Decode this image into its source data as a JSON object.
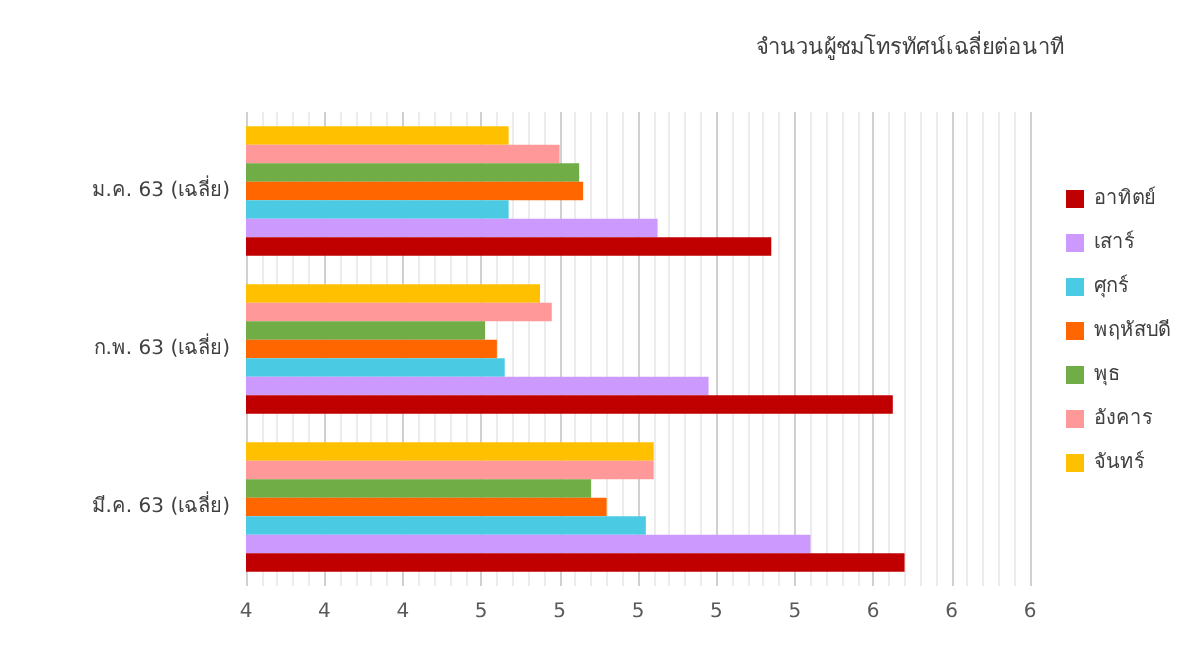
{
  "chart_data": {
    "type": "bar",
    "orientation": "horizontal",
    "title": "จำนวนผู้ชมโทรทัศน์เฉลี่ยต่อนาที",
    "categories": [
      "ม.ค. 63 (เฉลี่ย)",
      "ก.พ. 63 (เฉลี่ย)",
      "มี.ค. 63 (เฉลี่ย)"
    ],
    "series": [
      {
        "name": "อาทิตย์",
        "color": "#c00000",
        "values": [
          5.34,
          5.65,
          5.68
        ]
      },
      {
        "name": "เสาร์",
        "color": "#cc99ff",
        "values": [
          5.05,
          5.18,
          5.44
        ]
      },
      {
        "name": "ศุกร์",
        "color": "#4bcbe3",
        "values": [
          4.67,
          4.66,
          5.02
        ]
      },
      {
        "name": "พฤหัสบดี",
        "color": "#ff6600",
        "values": [
          4.86,
          4.64,
          4.92
        ]
      },
      {
        "name": "พุธ",
        "color": "#70ad47",
        "values": [
          4.85,
          4.61,
          4.88
        ]
      },
      {
        "name": "อังคาร",
        "color": "#ff9999",
        "values": [
          4.8,
          4.78,
          5.04
        ]
      },
      {
        "name": "จันทร์",
        "color": "#ffc000",
        "values": [
          4.67,
          4.75,
          5.04
        ]
      }
    ],
    "xlim": [
      4,
      6
    ],
    "xticks": [
      {
        "value": 4,
        "label": "4"
      },
      {
        "value": 4.2,
        "label": "4"
      },
      {
        "value": 4.4,
        "label": "4"
      },
      {
        "value": 4.6,
        "label": "5"
      },
      {
        "value": 4.8,
        "label": "5"
      },
      {
        "value": 5,
        "label": "5"
      },
      {
        "value": 5.2,
        "label": "5"
      },
      {
        "value": 5.4,
        "label": "5"
      },
      {
        "value": 5.6,
        "label": "6"
      },
      {
        "value": 5.8,
        "label": "6"
      },
      {
        "value": 6,
        "label": "6"
      }
    ],
    "grid": "x",
    "legend": "right"
  }
}
